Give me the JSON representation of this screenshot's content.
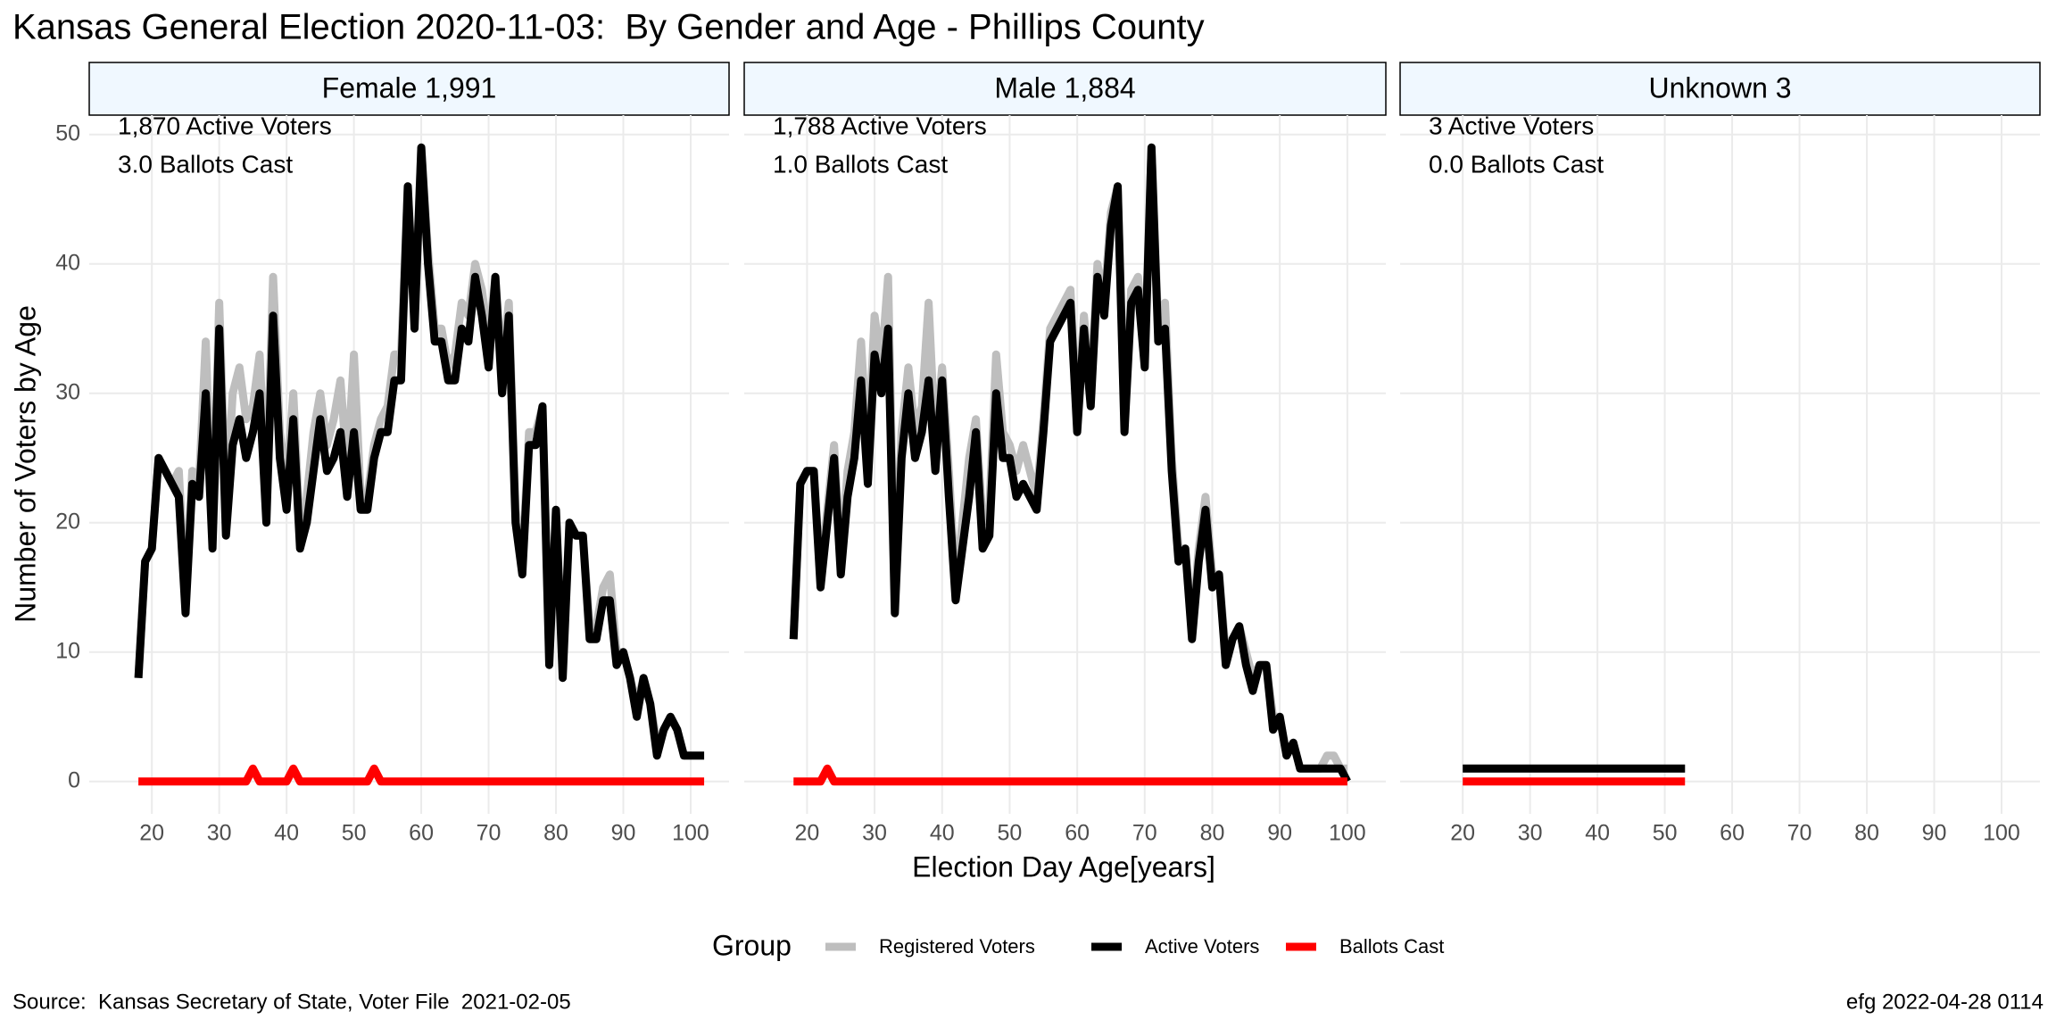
{
  "title": "Kansas General Election 2020-11-03:  By Gender and Age - Phillips County",
  "x_label": "Election Day Age[years]",
  "y_label": "Number of Voters by Age",
  "legend_title": "Group",
  "caption": "Source:  Kansas Secretary of State, Voter File  2021-02-05",
  "credit": "efg 2022-04-28 0114",
  "chart_data": [
    {
      "type": "line",
      "title": "Female 1,991",
      "annotations": [
        "1,870 Active Voters",
        "3.0 Ballots Cast"
      ],
      "xlim": [
        10.7,
        105.7
      ],
      "ylim": [
        -2.5,
        51.5
      ],
      "xticks": [
        20,
        30,
        40,
        50,
        60,
        70,
        80,
        90,
        100
      ],
      "yticks": [
        0,
        10,
        20,
        30,
        40,
        50
      ],
      "grid": true,
      "show_yticks": true,
      "x": [
        18,
        19,
        20,
        21,
        22,
        23,
        24,
        25,
        26,
        27,
        28,
        29,
        30,
        31,
        32,
        33,
        34,
        35,
        36,
        37,
        38,
        39,
        40,
        41,
        42,
        43,
        44,
        45,
        46,
        47,
        48,
        49,
        50,
        51,
        52,
        53,
        54,
        55,
        56,
        57,
        58,
        59,
        60,
        61,
        62,
        63,
        64,
        65,
        66,
        67,
        68,
        69,
        70,
        71,
        72,
        73,
        74,
        75,
        76,
        77,
        78,
        79,
        80,
        81,
        82,
        83,
        84,
        85,
        86,
        87,
        88,
        89,
        90,
        91,
        92,
        93,
        94,
        95,
        96,
        97,
        98,
        99,
        100,
        101,
        102
      ],
      "series": [
        {
          "name": "Registered Voters",
          "color": "#bebebe",
          "values": [
            8,
            17,
            18,
            25,
            24,
            23,
            24,
            14,
            24,
            23,
            34,
            19,
            37,
            21,
            30,
            32,
            28,
            29,
            33,
            22,
            39,
            27,
            23,
            30,
            19,
            22,
            27,
            30,
            26,
            28,
            31,
            24,
            33,
            22,
            22,
            26,
            28,
            29,
            33,
            33,
            46,
            36,
            49,
            41,
            35,
            35,
            32,
            33,
            37,
            36,
            40,
            38,
            34,
            39,
            32,
            37,
            21,
            17,
            27,
            27,
            29,
            10,
            21,
            9,
            20,
            19,
            19,
            12,
            12,
            15,
            16,
            10,
            10,
            8,
            6,
            8,
            6,
            3,
            4,
            5,
            4,
            2,
            2,
            2,
            2
          ]
        },
        {
          "name": "Active Voters",
          "color": "#000000",
          "values": [
            8,
            17,
            18,
            25,
            24,
            23,
            22,
            13,
            23,
            22,
            30,
            18,
            35,
            19,
            26,
            28,
            25,
            27,
            30,
            20,
            36,
            25,
            21,
            28,
            18,
            20,
            24,
            28,
            24,
            25,
            27,
            22,
            27,
            21,
            21,
            25,
            27,
            27,
            31,
            31,
            46,
            35,
            49,
            40,
            34,
            34,
            31,
            31,
            35,
            34,
            39,
            36,
            32,
            39,
            30,
            36,
            20,
            16,
            26,
            26,
            29,
            9,
            21,
            8,
            20,
            19,
            19,
            11,
            11,
            14,
            14,
            9,
            10,
            8,
            5,
            8,
            6,
            2,
            4,
            5,
            4,
            2,
            2,
            2,
            2
          ]
        },
        {
          "name": "Ballots Cast",
          "color": "#ff0000",
          "values": [
            0,
            0,
            0,
            0,
            0,
            0,
            0,
            0,
            0,
            0,
            0,
            0,
            0,
            0,
            0,
            0,
            0,
            1,
            0,
            0,
            0,
            0,
            0,
            1,
            0,
            0,
            0,
            0,
            0,
            0,
            0,
            0,
            0,
            0,
            0,
            1,
            0,
            0,
            0,
            0,
            0,
            0,
            0,
            0,
            0,
            0,
            0,
            0,
            0,
            0,
            0,
            0,
            0,
            0,
            0,
            0,
            0,
            0,
            0,
            0,
            0,
            0,
            0,
            0,
            0,
            0,
            0,
            0,
            0,
            0,
            0,
            0,
            0,
            0,
            0,
            0,
            0,
            0,
            0,
            0,
            0,
            0,
            0,
            0,
            0
          ]
        }
      ]
    },
    {
      "type": "line",
      "title": "Male 1,884",
      "annotations": [
        "1,788 Active Voters",
        "1.0 Ballots Cast"
      ],
      "xlim": [
        10.7,
        105.7
      ],
      "ylim": [
        -2.5,
        51.5
      ],
      "xticks": [
        20,
        30,
        40,
        50,
        60,
        70,
        80,
        90,
        100
      ],
      "yticks": [
        0,
        10,
        20,
        30,
        40,
        50
      ],
      "grid": true,
      "show_yticks": false,
      "x": [
        18,
        19,
        20,
        21,
        22,
        23,
        24,
        25,
        26,
        27,
        28,
        29,
        30,
        31,
        32,
        33,
        34,
        35,
        36,
        37,
        38,
        39,
        40,
        41,
        42,
        43,
        44,
        45,
        46,
        47,
        48,
        49,
        50,
        51,
        52,
        53,
        54,
        55,
        56,
        57,
        58,
        59,
        60,
        61,
        62,
        63,
        64,
        65,
        66,
        67,
        68,
        69,
        70,
        71,
        72,
        73,
        74,
        75,
        76,
        77,
        78,
        79,
        80,
        81,
        82,
        83,
        84,
        85,
        86,
        87,
        88,
        89,
        90,
        91,
        92,
        93,
        94,
        95,
        96,
        97,
        98,
        99,
        100
      ],
      "series": [
        {
          "name": "Registered Voters",
          "color": "#bebebe",
          "values": [
            11,
            23,
            24,
            24,
            16,
            21,
            26,
            17,
            24,
            27,
            34,
            25,
            36,
            32,
            39,
            14,
            27,
            32,
            27,
            29,
            37,
            26,
            32,
            24,
            15,
            20,
            25,
            28,
            20,
            21,
            33,
            27,
            26,
            24,
            26,
            24,
            22,
            28,
            35,
            36,
            37,
            38,
            28,
            36,
            30,
            40,
            37,
            44,
            46,
            28,
            38,
            39,
            33,
            49,
            35,
            37,
            25,
            18,
            18,
            12,
            18,
            22,
            16,
            16,
            10,
            11,
            12,
            10,
            8,
            9,
            9,
            5,
            5,
            2,
            3,
            1,
            1,
            1,
            1,
            2,
            2,
            1,
            1
          ]
        },
        {
          "name": "Active Voters",
          "color": "#000000",
          "values": [
            11,
            23,
            24,
            24,
            15,
            20,
            25,
            16,
            22,
            25,
            31,
            23,
            33,
            30,
            35,
            13,
            25,
            30,
            25,
            27,
            31,
            24,
            31,
            22,
            14,
            18,
            22,
            27,
            18,
            19,
            30,
            25,
            25,
            22,
            23,
            22,
            21,
            27,
            34,
            35,
            36,
            37,
            27,
            35,
            29,
            39,
            36,
            43,
            46,
            27,
            37,
            38,
            32,
            49,
            34,
            35,
            24,
            17,
            18,
            11,
            17,
            21,
            15,
            16,
            9,
            11,
            12,
            9,
            7,
            9,
            9,
            4,
            5,
            2,
            3,
            1,
            1,
            1,
            1,
            1,
            1,
            1,
            0
          ]
        },
        {
          "name": "Ballots Cast",
          "color": "#ff0000",
          "values": [
            0,
            0,
            0,
            0,
            0,
            1,
            0,
            0,
            0,
            0,
            0,
            0,
            0,
            0,
            0,
            0,
            0,
            0,
            0,
            0,
            0,
            0,
            0,
            0,
            0,
            0,
            0,
            0,
            0,
            0,
            0,
            0,
            0,
            0,
            0,
            0,
            0,
            0,
            0,
            0,
            0,
            0,
            0,
            0,
            0,
            0,
            0,
            0,
            0,
            0,
            0,
            0,
            0,
            0,
            0,
            0,
            0,
            0,
            0,
            0,
            0,
            0,
            0,
            0,
            0,
            0,
            0,
            0,
            0,
            0,
            0,
            0,
            0,
            0,
            0,
            0,
            0,
            0,
            0,
            0,
            0,
            0,
            0
          ]
        }
      ]
    },
    {
      "type": "line",
      "title": "Unknown 3",
      "annotations": [
        "3 Active Voters",
        "0.0 Ballots Cast"
      ],
      "xlim": [
        10.7,
        105.7
      ],
      "ylim": [
        -2.5,
        51.5
      ],
      "xticks": [
        20,
        30,
        40,
        50,
        60,
        70,
        80,
        90,
        100
      ],
      "yticks": [
        0,
        10,
        20,
        30,
        40,
        50
      ],
      "grid": true,
      "show_yticks": false,
      "x": [
        20,
        53
      ],
      "series": [
        {
          "name": "Registered Voters",
          "color": "#bebebe",
          "values": [
            1,
            1
          ]
        },
        {
          "name": "Active Voters",
          "color": "#000000",
          "values": [
            1,
            1
          ]
        },
        {
          "name": "Ballots Cast",
          "color": "#ff0000",
          "values": [
            0,
            0
          ]
        }
      ]
    }
  ]
}
